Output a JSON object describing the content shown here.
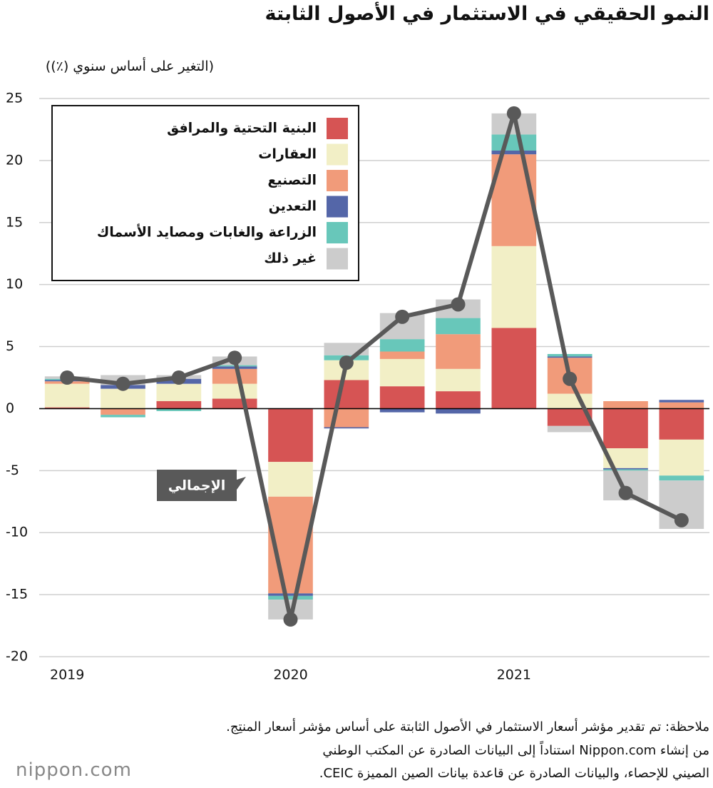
{
  "chart_data": {
    "type": "stacked-bar-line",
    "title": "النمو الحقيقي في الاستثمار في الأصول الثابتة",
    "y_label": "(التغير على أساس سنوي (٪))",
    "categories": [
      "2019",
      null,
      null,
      null,
      "2020",
      null,
      null,
      null,
      "2021",
      null,
      null,
      null
    ],
    "ylim": [
      -20,
      25
    ],
    "yticks": [
      -20,
      -15,
      -10,
      -5,
      0,
      5,
      10,
      15,
      20,
      25
    ],
    "grid": true,
    "legend": "top-left",
    "series": [
      {
        "name": "البنية التحتية والمرافق",
        "color": "#d65454",
        "values": [
          0.1,
          0,
          0.6,
          0.8,
          -4.3,
          2.3,
          1.8,
          1.4,
          6.5,
          -1.4,
          -3.2,
          -2.5
        ]
      },
      {
        "name": "العقارات",
        "color": "#f2efc6",
        "values": [
          1.9,
          1.6,
          1.4,
          1.2,
          -2.8,
          1.6,
          2.2,
          1.8,
          6.6,
          1.2,
          -1.6,
          -2.9
        ]
      },
      {
        "name": "التصنيع",
        "color": "#f19b7a",
        "values": [
          0.2,
          -0.5,
          0,
          1.2,
          -7.8,
          -1.5,
          0.6,
          2.8,
          7.4,
          2.9,
          0.6,
          0.5
        ]
      },
      {
        "name": "التعدين",
        "color": "#5466a8",
        "values": [
          0.1,
          0.3,
          0.4,
          0.2,
          -0.2,
          -0.1,
          -0.3,
          -0.4,
          0.3,
          0.1,
          -0.1,
          0.2
        ]
      },
      {
        "name": "الزراعة والغابات ومصايد الأسماك",
        "color": "#68c7ba",
        "values": [
          0.1,
          -0.2,
          -0.2,
          0.1,
          -0.3,
          0.4,
          1.0,
          1.3,
          1.3,
          0.2,
          -0.1,
          -0.4
        ]
      },
      {
        "name": "غير ذلك",
        "color": "#cccccc",
        "values": [
          0.2,
          0.8,
          0.3,
          0.7,
          -1.6,
          1.0,
          2.1,
          1.5,
          1.7,
          -0.5,
          -2.4,
          -3.9
        ]
      }
    ],
    "total": {
      "name": "الإجمالي",
      "color": "#595959",
      "values": [
        2.5,
        2.0,
        2.5,
        4.1,
        -17.0,
        3.7,
        7.4,
        8.4,
        23.8,
        2.4,
        -6.8,
        -9.0
      ]
    },
    "notes": [
      "ملاحظة: تم تقدير مؤشر أسعار الاستثمار في الأصول الثابتة على أساس مؤشر أسعار المنتِج.",
      "من إنشاء Nippon.com استناداً إلى البيانات الصادرة عن المكتب الوطني",
      "الصيني للإحصاء، والبيانات الصادرة عن قاعدة بيانات الصين المميزة CEIC."
    ],
    "logo": "nippon.com"
  }
}
